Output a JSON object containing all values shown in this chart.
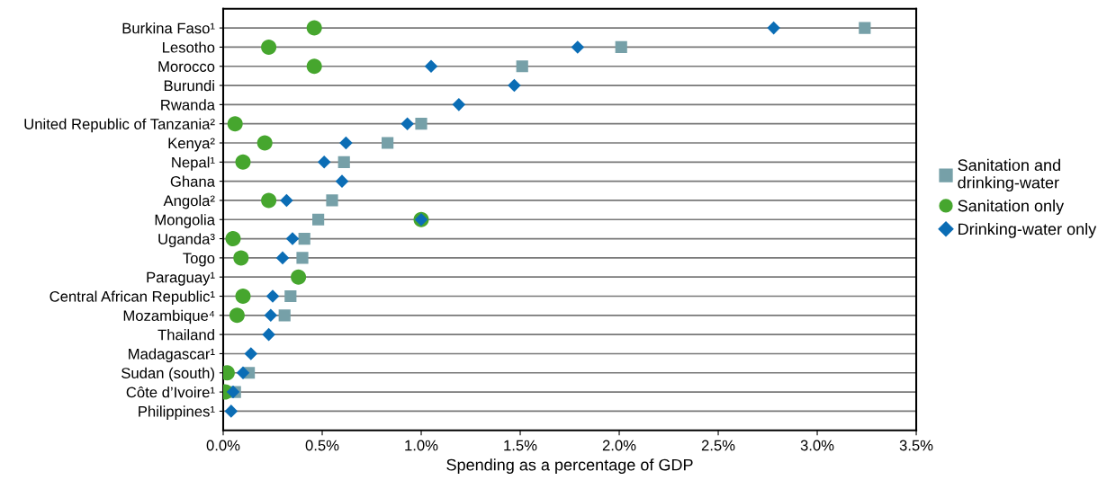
{
  "chart_data": {
    "type": "scatter",
    "orientation": "horizontal",
    "xlabel": "Spending as a percentage of GDP",
    "categories": [
      "Burkina Faso¹",
      "Lesotho",
      "Morocco",
      "Burundi",
      "Rwanda",
      "United Republic of Tanzania²",
      "Kenya²",
      "Nepal¹",
      "Ghana",
      "Angola²",
      "Mongolia",
      "Uganda³",
      "Togo",
      "Paraguay¹",
      "Central African Republic¹",
      "Mozambique⁴",
      "Thailand",
      "Madagascar¹",
      "Sudan (south)",
      "Côte d’Ivoire¹",
      "Philippines¹"
    ],
    "series": [
      {
        "name": "Sanitation and\ndrinking-water",
        "color": "#76a0a8",
        "marker": "square",
        "values": [
          3.24,
          2.01,
          1.51,
          null,
          null,
          1.0,
          0.83,
          0.61,
          null,
          0.55,
          0.48,
          0.41,
          0.4,
          null,
          0.34,
          0.31,
          null,
          null,
          0.13,
          0.06,
          null
        ]
      },
      {
        "name": "Sanitation only",
        "color": "#46a62e",
        "marker": "circle",
        "values": [
          0.46,
          0.23,
          0.46,
          null,
          null,
          0.06,
          0.21,
          0.1,
          null,
          0.23,
          1.0,
          0.05,
          0.09,
          0.38,
          0.1,
          0.07,
          null,
          null,
          0.02,
          0.01,
          null
        ]
      },
      {
        "name": "Drinking-water only",
        "color": "#0b6db5",
        "marker": "diamond",
        "values": [
          2.78,
          1.79,
          1.05,
          1.47,
          1.19,
          0.93,
          0.62,
          0.51,
          0.6,
          0.32,
          1.0,
          0.35,
          0.3,
          null,
          0.25,
          0.24,
          0.23,
          0.14,
          0.1,
          0.05,
          0.04
        ]
      }
    ],
    "xlim": [
      0,
      3.5
    ],
    "xticks": [
      {
        "value": 0,
        "label": "0.0%"
      },
      {
        "value": 0.5,
        "label": "0.5%"
      },
      {
        "value": 1,
        "label": "1.0%"
      },
      {
        "value": 1.5,
        "label": "1.5%"
      },
      {
        "value": 2,
        "label": "2.0%"
      },
      {
        "value": 2.5,
        "label": "2.5%"
      },
      {
        "value": 3,
        "label": "3.0%"
      },
      {
        "value": 3.5,
        "label": "3.5%"
      }
    ],
    "grid": "y",
    "legend": "right"
  }
}
